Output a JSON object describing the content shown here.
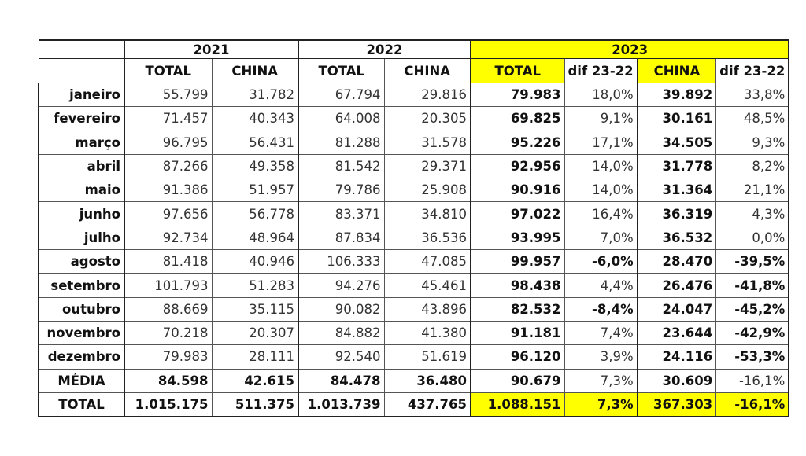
{
  "years": [
    "2021",
    "2022",
    "2023"
  ],
  "subheaders": [
    "TOTAL",
    "CHINA",
    "TOTAL",
    "CHINA",
    "TOTAL",
    "dif 23-22",
    "CHINA",
    "dif 23-22"
  ],
  "highlight_color": "#ffff00",
  "rows": [
    {
      "label": "janeiro",
      "values": [
        "55.799",
        "31.782",
        "67.794",
        "29.816",
        "79.983",
        "18,0%",
        "39.892",
        "33,8%"
      ]
    },
    {
      "label": "fevereiro",
      "values": [
        "71.457",
        "40.343",
        "64.008",
        "20.305",
        "69.825",
        "9,1%",
        "30.161",
        "48,5%"
      ]
    },
    {
      "label": "março",
      "values": [
        "96.795",
        "56.431",
        "81.288",
        "31.578",
        "95.226",
        "17,1%",
        "34.505",
        "9,3%"
      ]
    },
    {
      "label": "abril",
      "values": [
        "87.266",
        "49.358",
        "81.542",
        "29.371",
        "92.956",
        "14,0%",
        "31.778",
        "8,2%"
      ]
    },
    {
      "label": "maio",
      "values": [
        "91.386",
        "51.957",
        "79.786",
        "25.908",
        "90.916",
        "14,0%",
        "31.364",
        "21,1%"
      ]
    },
    {
      "label": "junho",
      "values": [
        "97.656",
        "56.778",
        "83.371",
        "34.810",
        "97.022",
        "16,4%",
        "36.319",
        "4,3%"
      ]
    },
    {
      "label": "julho",
      "values": [
        "92.734",
        "48.964",
        "87.834",
        "36.536",
        "93.995",
        "7,0%",
        "36.532",
        "0,0%"
      ]
    },
    {
      "label": "agosto",
      "values": [
        "81.418",
        "40.946",
        "106.333",
        "47.085",
        "99.957",
        "-6,0%",
        "28.470",
        "-39,5%"
      ]
    },
    {
      "label": "setembro",
      "values": [
        "101.793",
        "51.283",
        "94.276",
        "45.461",
        "98.438",
        "4,4%",
        "26.476",
        "-41,8%"
      ]
    },
    {
      "label": "outubro",
      "values": [
        "88.669",
        "35.115",
        "90.082",
        "43.896",
        "82.532",
        "-8,4%",
        "24.047",
        "-45,2%"
      ]
    },
    {
      "label": "novembro",
      "values": [
        "70.218",
        "20.307",
        "84.882",
        "41.380",
        "91.181",
        "7,4%",
        "23.644",
        "-42,9%"
      ]
    },
    {
      "label": "dezembro",
      "values": [
        "79.983",
        "28.111",
        "92.540",
        "51.619",
        "96.120",
        "3,9%",
        "24.116",
        "-53,3%"
      ]
    },
    {
      "label": "MÉDIA",
      "values": [
        "84.598",
        "42.615",
        "84.478",
        "36.480",
        "90.679",
        "7,3%",
        "30.609",
        "-16,1%"
      ]
    },
    {
      "label": "TOTAL",
      "values": [
        "1.015.175",
        "511.375",
        "1.013.739",
        "437.765",
        "1.088.151",
        "7,3%",
        "367.303",
        "-16,1%"
      ]
    }
  ]
}
